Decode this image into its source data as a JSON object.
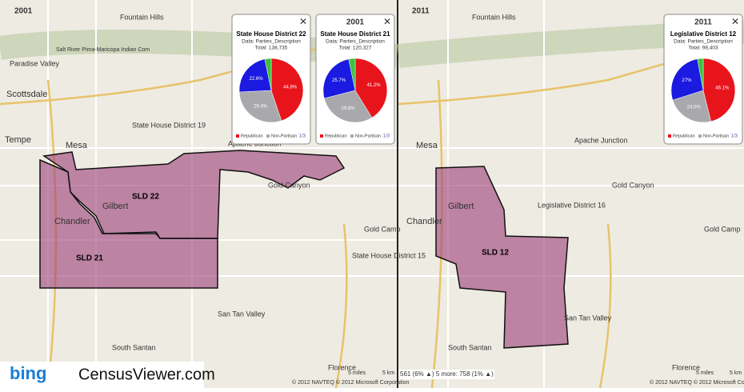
{
  "maps": [
    {
      "year": "2001",
      "places": [
        "Fountain Hills",
        "Paradise Valley",
        "Scottsdale",
        "Tempe",
        "Mesa",
        "Chandler",
        "Gilbert",
        "Apache Junction",
        "Gold Canyon",
        "Gold Camp",
        "San Tan Valley",
        "South Santan",
        "Florence",
        "State House District 19",
        "State House District 15",
        "Salt River Pima-Maricopa Indian Com"
      ],
      "districts": [
        "SLD 22",
        "SLD 21"
      ],
      "popups": [
        {
          "header": "",
          "title": "State House District 22",
          "subtitle": "Data: Parties_Description",
          "total": "Total: 138,735",
          "values": [
            44.8,
            29.4,
            22.6,
            3.2
          ],
          "value_labels": [
            "44.8%",
            "29.4%",
            "22.6%",
            null
          ],
          "colors": [
            "#e8141c",
            "#a9a9ad",
            "#1a1ae0",
            "#3cc23c"
          ],
          "legend": [
            "Republican",
            "Non-Partisan"
          ],
          "pager": "1/3"
        },
        {
          "header": "2001",
          "title": "State House District 21",
          "subtitle": "Data: Parties_Description",
          "total": "Total: 120,327",
          "values": [
            41.2,
            29.8,
            25.7,
            3.3
          ],
          "value_labels": [
            "41.2%",
            "29.8%",
            "25.7%",
            null
          ],
          "colors": [
            "#e8141c",
            "#a9a9ad",
            "#1a1ae0",
            "#3cc23c"
          ],
          "legend": [
            "Republican",
            "Non-Partisan"
          ],
          "pager": "1/3"
        }
      ]
    },
    {
      "year": "2011",
      "places": [
        "Fountain Hills",
        "Mesa",
        "Chandler",
        "Gilbert",
        "Apache Junction",
        "Gold Canyon",
        "Gold Camp",
        "San Tan Valley",
        "South Santan",
        "Florence",
        "Legislative District 16"
      ],
      "districts": [
        "SLD 12"
      ],
      "popups": [
        {
          "header": "2011",
          "title": "Legislative District 12",
          "subtitle": "Data: Parties_Description",
          "total": "Total: 98,403",
          "values": [
            46.1,
            24.0,
            27,
            2.9
          ],
          "value_labels": [
            "46.1%",
            "24.0%",
            "27%",
            null
          ],
          "colors": [
            "#e8141c",
            "#a9a9ad",
            "#1a1ae0",
            "#3cc23c"
          ],
          "legend": [
            "Republican",
            "Non-Partisan"
          ],
          "pager": "1/3"
        }
      ]
    }
  ],
  "footer": {
    "brand": "bing",
    "site": "CensusViewer.com",
    "copyright": "© 2012 NAVTEQ © 2012 Microsoft Corporation",
    "scale_miles": "5 miles",
    "scale_km": "5 km",
    "status": "561 (6% ▲) 5 more: 758 (1% ▲)"
  }
}
